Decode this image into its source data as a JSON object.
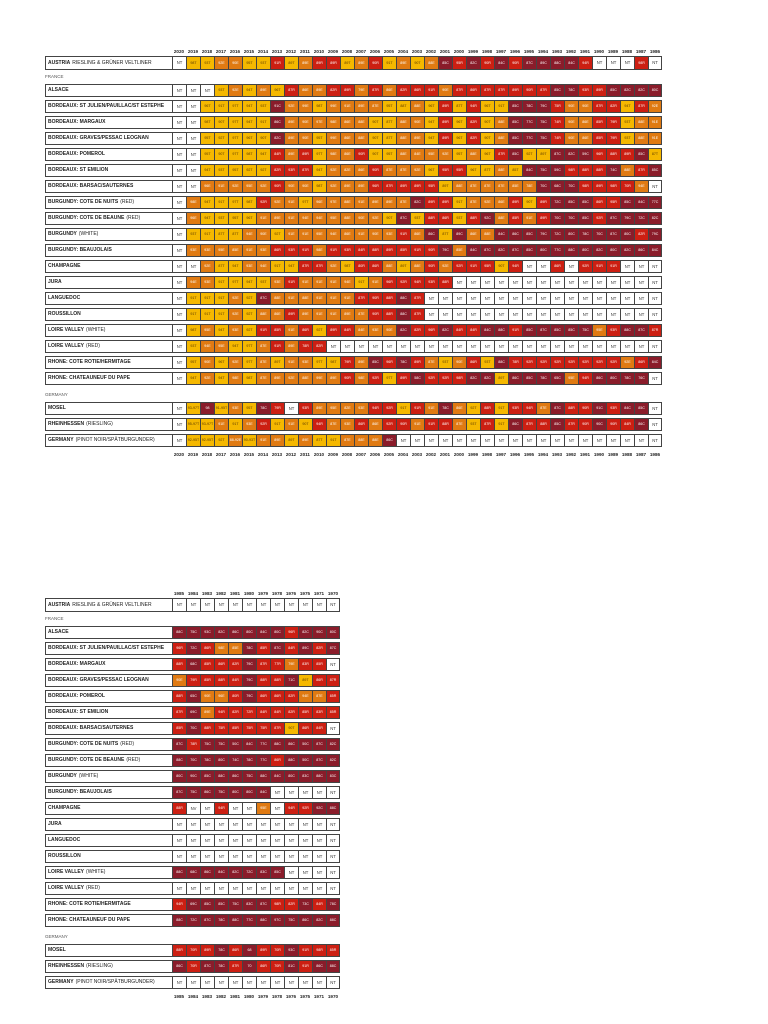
{
  "sections_top": [
    "FRANCE",
    "GERMANY"
  ],
  "years_top": [
    "2020",
    "2019",
    "2018",
    "2017",
    "2016",
    "2015",
    "2014",
    "2013",
    "2012",
    "2011",
    "2010",
    "2009",
    "2008",
    "2007",
    "2006",
    "2005",
    "2004",
    "2003",
    "2002",
    "2001",
    "2000",
    "1999",
    "1998",
    "1997",
    "1996",
    "1995",
    "1994",
    "1993",
    "1992",
    "1991",
    "1990",
    "1989",
    "1988",
    "1987",
    "1986"
  ],
  "years_bottom": [
    "1985",
    "1984",
    "1983",
    "1982",
    "1981",
    "1980",
    "1979",
    "1978",
    "1976",
    "1975",
    "1971",
    "1970"
  ],
  "section_labels": {
    "france": "FRANCE",
    "germany": "GERMANY"
  },
  "austria": {
    "name": "AUSTRIA",
    "sub": "RIESLING & GRÜNER VELTLINER"
  },
  "france_rows": [
    {
      "name": "ALSACE",
      "sub": ""
    },
    {
      "name": "BORDEAUX: ST JULIEN/PAUILLAC/ST ESTEPHE",
      "sub": ""
    },
    {
      "name": "BORDEAUX: MARGAUX",
      "sub": ""
    },
    {
      "name": "BORDEAUX: GRAVES/PESSAC LEOGNAN",
      "sub": ""
    },
    {
      "name": "BORDEAUX: POMEROL",
      "sub": ""
    },
    {
      "name": "BORDEAUX: ST EMILION",
      "sub": ""
    },
    {
      "name": "BORDEAUX: BARSAC/SAUTERNES",
      "sub": ""
    },
    {
      "name": "BURGUNDY: COTE DE NUITS",
      "sub": "(RED)"
    },
    {
      "name": "BURGUNDY: COTE DE BEAUNE",
      "sub": "(RED)"
    },
    {
      "name": "BURGUNDY",
      "sub": "(WHITE)"
    },
    {
      "name": "BURGUNDY: BEAUJOLAIS",
      "sub": ""
    },
    {
      "name": "CHAMPAGNE",
      "sub": ""
    },
    {
      "name": "JURA",
      "sub": ""
    },
    {
      "name": "LANGUEDOC",
      "sub": ""
    },
    {
      "name": "ROUSSILLON",
      "sub": ""
    },
    {
      "name": "LOIRE VALLEY",
      "sub": "(WHITE)"
    },
    {
      "name": "LOIRE VALLEY",
      "sub": "(RED)"
    },
    {
      "name": "RHONE: COTE ROTIE/HERMITAGE",
      "sub": ""
    },
    {
      "name": "RHONE: CHATEAUNEUF DU PAPE",
      "sub": ""
    }
  ],
  "germany_rows": [
    {
      "name": "MOSEL",
      "sub": ""
    },
    {
      "name": "RHEINHESSEN",
      "sub": "(RIESLING)"
    },
    {
      "name": "GERMANY",
      "sub": "(PINOT NOIR/SPÄTBURGUNDER)"
    }
  ],
  "ratings_top": {
    "austria": [
      "NT",
      "98T",
      "93T",
      "92E",
      "90E",
      "95T",
      "93T",
      "91R",
      "89T",
      "89E",
      "89R",
      "89R",
      "89T",
      "89E",
      "90R",
      "91T",
      "89E",
      "90T",
      "88E",
      "85C",
      "95R",
      "82C",
      "90R",
      "84C",
      "90R",
      "87C",
      "89C",
      "88C",
      "84C",
      "94R",
      "NT",
      "NT",
      "NT",
      "98R",
      "NT"
    ],
    "france": [
      [
        "NT",
        "NT",
        "NT",
        "93T",
        "92E",
        "94T",
        "89E",
        "96T",
        "87R",
        "86E",
        "89E",
        "82R",
        "89R",
        "79E",
        "87R",
        "86E",
        "82R",
        "86R",
        "91R",
        "90E",
        "87R",
        "86R",
        "87R",
        "87R",
        "89R",
        "90R",
        "87R",
        "85C",
        "78C",
        "93R",
        "89R",
        "85C",
        "82C",
        "82C",
        "80C"
      ],
      [
        "NT",
        "NT",
        "96T",
        "91T",
        "97T",
        "94T",
        "93T",
        "91C",
        "92E",
        "99E",
        "98T",
        "99E",
        "91E",
        "89E",
        "87E",
        "95T",
        "88T",
        "88E",
        "96T",
        "89R",
        "87T",
        "94R",
        "96T",
        "91T",
        "85C",
        "78C",
        "79C",
        "75R",
        "90E",
        "90E",
        "87R",
        "82R",
        "94T",
        "87R",
        "92E"
      ],
      [
        "NT",
        "NT",
        "98T",
        "90T",
        "97T",
        "94T",
        "91T",
        "86C",
        "89E",
        "90E",
        "97E",
        "98E",
        "86E",
        "88E",
        "90T",
        "87T",
        "88E",
        "90E",
        "94T",
        "89R",
        "96T",
        "82R",
        "90T",
        "88E",
        "85C",
        "77C",
        "75C",
        "74R",
        "90E",
        "86E",
        "85R",
        "79R",
        "93T",
        "88E",
        "91E"
      ],
      [
        "NT",
        "NT",
        "95T",
        "92T",
        "97T",
        "96T",
        "90T",
        "82C",
        "89E",
        "90E",
        "95T",
        "99E",
        "86E",
        "88E",
        "90T",
        "87T",
        "88E",
        "89E",
        "94T",
        "89R",
        "96T",
        "82R",
        "90T",
        "88E",
        "85C",
        "77C",
        "75C",
        "74R",
        "90E",
        "86E",
        "85R",
        "79R",
        "93T",
        "88E",
        "91E"
      ],
      [
        "NT",
        "NT",
        "95T",
        "90T",
        "97T",
        "98T",
        "94T",
        "84R",
        "89E",
        "89R",
        "97T",
        "98E",
        "86E",
        "90R",
        "90T",
        "95T",
        "88E",
        "84E",
        "95E",
        "92E",
        "95T",
        "88E",
        "96T",
        "87R",
        "85C",
        "92T",
        "89T",
        "87C",
        "82C",
        "59C",
        "96R",
        "88R",
        "89R",
        "85C",
        "87T"
      ],
      [
        "NT",
        "NT",
        "94T",
        "93T",
        "95T",
        "92T",
        "92T",
        "82R",
        "93R",
        "87R",
        "94T",
        "92E",
        "82E",
        "86E",
        "90R",
        "87E",
        "87E",
        "92E",
        "96T",
        "95R",
        "95R",
        "96T",
        "87T",
        "88E",
        "85T",
        "84C",
        "75C",
        "59C",
        "98R",
        "88R",
        "88R",
        "74C",
        "88E",
        "87R",
        "85C"
      ],
      [
        "NT",
        "NT",
        "96E",
        "91E",
        "92E",
        "95E",
        "92E",
        "90R",
        "90E",
        "90E",
        "98T",
        "92E",
        "89E",
        "89E",
        "96R",
        "87R",
        "89R",
        "89R",
        "95R",
        "89T",
        "88E",
        "87E",
        "87E",
        "87E",
        "85E",
        "78E",
        "70C",
        "68C",
        "70C",
        "98R",
        "89R",
        "98R",
        "70R",
        "94E",
        "NT"
      ],
      [
        "NT",
        "98E",
        "94T",
        "91T",
        "97T",
        "98T",
        "92R",
        "92E",
        "91E",
        "97T",
        "96E",
        "97E",
        "88E",
        "91E",
        "89E",
        "89E",
        "87E",
        "82C",
        "89R",
        "89R",
        "91T",
        "87E",
        "92E",
        "86E",
        "89R",
        "90T",
        "89R",
        "72C",
        "85C",
        "85C",
        "86R",
        "95R",
        "85C",
        "84C",
        "77C"
      ],
      [
        "NT",
        "96E",
        "94T",
        "93T",
        "95T",
        "96T",
        "91E",
        "89E",
        "91E",
        "94E",
        "94E",
        "95E",
        "88E",
        "90E",
        "92E",
        "90T",
        "87C",
        "93T",
        "88R",
        "86R",
        "93T",
        "88R",
        "92C",
        "88E",
        "85R",
        "91E",
        "89R",
        "70C",
        "70C",
        "85C",
        "92R",
        "87C",
        "79C",
        "72C",
        "82C"
      ],
      [
        "NT",
        "93T",
        "91T",
        "87T",
        "87T",
        "94E",
        "90E",
        "92T",
        "91E",
        "91E",
        "95E",
        "94E",
        "86E",
        "91E",
        "90E",
        "93E",
        "91R",
        "86E",
        "86C",
        "87T",
        "89C",
        "86E",
        "88E",
        "84C",
        "86C",
        "85C",
        "79C",
        "72C",
        "80C",
        "78C",
        "70C",
        "87C",
        "80C",
        "82R",
        "79C"
      ],
      [
        "NT",
        "93E",
        "93E",
        "95E",
        "85E",
        "91E",
        "93E",
        "86R",
        "93R",
        "91R",
        "98E",
        "91R",
        "93R",
        "84R",
        "88R",
        "89R",
        "85R",
        "91R",
        "90R",
        "79C",
        "85E",
        "84C",
        "87C",
        "82C",
        "87C",
        "85C",
        "80C",
        "77C",
        "88C",
        "80C",
        "82C",
        "80C",
        "82C",
        "86C",
        "84C"
      ],
      [
        "NT",
        "NT",
        "92E",
        "87T",
        "94T",
        "93E",
        "94E",
        "91T",
        "94T",
        "87R",
        "87R",
        "92E",
        "98T",
        "80R",
        "86R",
        "88E",
        "89T",
        "88E",
        "90R",
        "92E",
        "92R",
        "91R",
        "95R",
        "90T",
        "94R",
        "NT",
        "NT",
        "86R",
        "NT",
        "92R",
        "91R",
        "91R",
        "NT",
        "NT",
        "NT"
      ],
      [
        "NT",
        "94E",
        "93E",
        "91T",
        "97T",
        "94T",
        "93T",
        "93E",
        "91R",
        "91E",
        "91E",
        "91E",
        "94E",
        "91T",
        "91E",
        "96R",
        "92R",
        "94R",
        "93R",
        "88R",
        "NT",
        "NT",
        "NT",
        "NT",
        "NT",
        "NT",
        "NT",
        "NT",
        "NT",
        "NT",
        "NT",
        "NT",
        "NT",
        "NT",
        "NT"
      ],
      [
        "NT",
        "91T",
        "91T",
        "91T",
        "92E",
        "92T",
        "87C",
        "88E",
        "91E",
        "88E",
        "91E",
        "91E",
        "91E",
        "87R",
        "90R",
        "88R",
        "88C",
        "87R",
        "NT",
        "NT",
        "NT",
        "NT",
        "NT",
        "NT",
        "NT",
        "NT",
        "NT",
        "NT",
        "NT",
        "NT",
        "NT",
        "NT",
        "NT",
        "NT",
        "NT"
      ],
      [
        "NT",
        "91T",
        "91T",
        "91T",
        "92E",
        "92T",
        "88E",
        "86E",
        "89R",
        "89E",
        "91E",
        "91E",
        "89E",
        "87E",
        "90R",
        "88R",
        "88C",
        "87R",
        "NT",
        "NT",
        "NT",
        "NT",
        "NT",
        "NT",
        "NT",
        "NT",
        "NT",
        "NT",
        "NT",
        "NT",
        "NT",
        "NT",
        "NT",
        "NT",
        "NT"
      ],
      [
        "NT",
        "98T",
        "95E",
        "94T",
        "93E",
        "92T",
        "91R",
        "85R",
        "91E",
        "86R",
        "92T",
        "89R",
        "84R",
        "84E",
        "93E",
        "90E",
        "82C",
        "82R",
        "96R",
        "82C",
        "84R",
        "84R",
        "84C",
        "88C",
        "91R",
        "85C",
        "87C",
        "85C",
        "85C",
        "75C",
        "95E",
        "93R",
        "88C",
        "87C",
        "87R"
      ],
      [
        "NT",
        "93T",
        "94E",
        "95E",
        "94T",
        "97T",
        "87E",
        "91R",
        "89E",
        "78R",
        "82R",
        "NT",
        "NT",
        "NT",
        "NT",
        "NT",
        "NT",
        "NT",
        "NT",
        "NT",
        "NT",
        "NT",
        "NT",
        "NT",
        "NT",
        "NT",
        "NT",
        "NT",
        "NT",
        "NT",
        "NT",
        "NT",
        "NT",
        "NT",
        "NT"
      ],
      [
        "NT",
        "95T",
        "90E",
        "96T",
        "92E",
        "97T",
        "87E",
        "89T",
        "91E",
        "93E",
        "97T",
        "98T",
        "79R",
        "89E",
        "85C",
        "96R",
        "78C",
        "89R",
        "87E",
        "93T",
        "90E",
        "86R",
        "93T",
        "88C",
        "78R",
        "92R",
        "92R",
        "92R",
        "92R",
        "92R",
        "92R",
        "92R",
        "92E",
        "86R",
        "84C"
      ],
      [
        "NT",
        "94T",
        "92E",
        "94T",
        "98E",
        "98T",
        "87E",
        "89E",
        "92E",
        "88E",
        "99E",
        "89E",
        "90R",
        "98E",
        "92R",
        "97T",
        "89R",
        "58C",
        "92R",
        "92R",
        "98R",
        "82C",
        "82C",
        "89T",
        "86C",
        "85C",
        "78C",
        "65C",
        "95E",
        "94R",
        "86C",
        "80C",
        "78C",
        "76C",
        "NT"
      ]
    ],
    "germany": [
      [
        "NT",
        "93-97T",
        "98",
        "91-95T",
        "93E",
        "95T",
        "78C",
        "79R",
        "NT",
        "93R",
        "89E",
        "95E",
        "82E",
        "93E",
        "94R",
        "92R",
        "91T",
        "91R",
        "91E",
        "78C",
        "86E",
        "92T",
        "88R",
        "91T",
        "93R",
        "94R",
        "87E",
        "87C",
        "88R",
        "90R",
        "91C",
        "93R",
        "84C",
        "85C",
        "NT"
      ],
      [
        "NT",
        "95-97T",
        "93-97T",
        "91E",
        "91T",
        "93E",
        "92R",
        "91T",
        "91E",
        "90T",
        "94R",
        "87E",
        "93E",
        "86R",
        "86E",
        "92R",
        "90R",
        "91E",
        "91R",
        "88R",
        "87E",
        "93T",
        "87R",
        "91T",
        "86C",
        "87R",
        "88R",
        "85C",
        "87R",
        "90R",
        "90C",
        "90R",
        "84R",
        "86C",
        "NT"
      ],
      [
        "NT",
        "92-95T",
        "92-95T",
        "92T",
        "88-92E",
        "90-93T",
        "91E",
        "89E",
        "89T",
        "89E",
        "87T",
        "91T",
        "87E",
        "88E",
        "88E",
        "86C",
        "NT",
        "NT",
        "NT",
        "NT",
        "NT",
        "NT",
        "NT",
        "NT",
        "NT",
        "NT",
        "NT",
        "NT",
        "NT",
        "NT",
        "NT",
        "NT",
        "NT",
        "NT",
        "NT"
      ]
    ]
  },
  "ratings_bottom": {
    "austria": [
      "NT",
      "NT",
      "NT",
      "NT",
      "NT",
      "NT",
      "NT",
      "NT",
      "NT",
      "NT",
      "NT",
      "NT"
    ],
    "france": [
      [
        "88C",
        "75C",
        "93C",
        "82C",
        "86C",
        "80C",
        "84C",
        "80C",
        "96R",
        "82C",
        "90C",
        "80C"
      ],
      [
        "96R",
        "72C",
        "86R",
        "98E",
        "85E",
        "78C",
        "85R",
        "87C",
        "84R",
        "89C",
        "82R",
        "87C"
      ],
      [
        "88R",
        "68C",
        "85R",
        "86R",
        "82R",
        "79C",
        "87R",
        "77R",
        "79E",
        "83R",
        "85R",
        "NT"
      ],
      [
        "90E",
        "79R",
        "85R",
        "88R",
        "84R",
        "79C",
        "88R",
        "88R",
        "71C",
        "89T",
        "86R",
        "87R"
      ],
      [
        "88R",
        "65C",
        "90E",
        "96E",
        "80R",
        "79C",
        "86R",
        "86R",
        "82R",
        "94E",
        "87E",
        "85R"
      ],
      [
        "87R",
        "69C",
        "89E",
        "94R",
        "82R",
        "72R",
        "84R",
        "84R",
        "82R",
        "85R",
        "83R",
        "85R"
      ],
      [
        "85R",
        "70C",
        "88R",
        "75R",
        "85R",
        "75R",
        "75R",
        "87R",
        "90T",
        "86R",
        "84R",
        "NT"
      ],
      [
        "87C",
        "78R",
        "75C",
        "75C",
        "50C",
        "84C",
        "77C",
        "88C",
        "86C",
        "50C",
        "87C",
        "82C"
      ],
      [
        "88C",
        "70C",
        "78C",
        "80C",
        "74C",
        "78C",
        "77C",
        "86R",
        "88C",
        "50C",
        "87C",
        "82C"
      ],
      [
        "80C",
        "90C",
        "85C",
        "88C",
        "86C",
        "75C",
        "88C",
        "84C",
        "80C",
        "83C",
        "88C",
        "83C"
      ],
      [
        "87C",
        "75C",
        "86C",
        "75C",
        "80C",
        "80C",
        "84C",
        "NT",
        "NT",
        "NT",
        "NT",
        "NT"
      ],
      [
        "88R",
        "NV",
        "NT",
        "94R",
        "NT",
        "NT",
        "95E",
        "NT",
        "94R",
        "92R",
        "92C",
        "88C"
      ],
      [
        "NT",
        "NT",
        "NT",
        "NT",
        "NT",
        "NT",
        "NT",
        "NT",
        "NT",
        "NT",
        "NT",
        "NT"
      ],
      [
        "NT",
        "NT",
        "NT",
        "NT",
        "NT",
        "NT",
        "NT",
        "NT",
        "NT",
        "NT",
        "NT",
        "NT"
      ],
      [
        "NT",
        "NT",
        "NT",
        "NT",
        "NT",
        "NT",
        "NT",
        "NT",
        "NT",
        "NT",
        "NT",
        "NT"
      ],
      [
        "88C",
        "68C",
        "86C",
        "84C",
        "82C",
        "72C",
        "83C",
        "85C",
        "NT",
        "NT",
        "NT",
        "NT"
      ],
      [
        "NT",
        "NT",
        "NT",
        "NT",
        "NT",
        "NT",
        "NT",
        "NT",
        "NT",
        "NT",
        "NT",
        "NT"
      ],
      [
        "94R",
        "69C",
        "85C",
        "85C",
        "75C",
        "83C",
        "87C",
        "98R",
        "82R",
        "73C",
        "84R",
        "78C"
      ],
      [
        "88C",
        "72C",
        "87C",
        "78C",
        "88C",
        "77C",
        "88C",
        "97C",
        "75C",
        "86C",
        "82C",
        "88C"
      ]
    ],
    "germany": [
      [
        "88R",
        "70R",
        "89R",
        "78C",
        "86R",
        "68",
        "89R",
        "70R",
        "93C",
        "91R",
        "98R",
        "85R"
      ],
      [
        "86C",
        "70R",
        "87C",
        "78C",
        "87R",
        "70",
        "86R",
        "70R",
        "81C",
        "91R",
        "86C",
        "88C"
      ],
      [
        "NT",
        "NT",
        "NT",
        "NT",
        "NT",
        "NT",
        "NT",
        "NT",
        "NT",
        "NT",
        "NT",
        "NT"
      ]
    ]
  },
  "colors": {
    "T": "#f5b800",
    "E": "#e07a12",
    "R": "#cc1f12",
    "C": "#8a1c2a",
    "NT": "#ffffff",
    "blue": "#5a4a8a"
  }
}
